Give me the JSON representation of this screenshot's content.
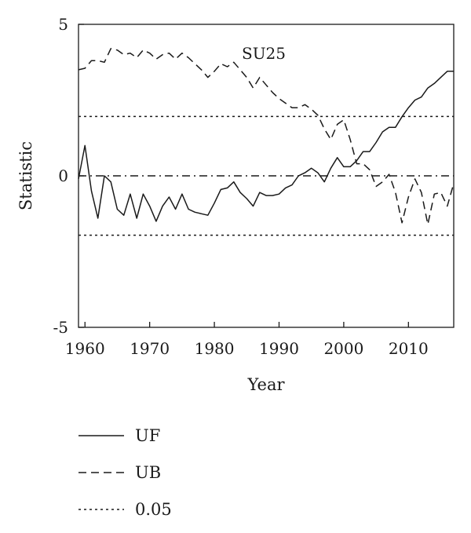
{
  "chart_data": {
    "type": "line",
    "title": "",
    "xlabel": "Year",
    "ylabel": "Statistic",
    "annotation": "SU25",
    "xlim": [
      1959,
      2017
    ],
    "ylim": [
      -5,
      5
    ],
    "x_ticks": [
      1960,
      1970,
      1980,
      1990,
      2000,
      2010
    ],
    "y_ticks": [
      {
        "value": 5,
        "label": "5"
      },
      {
        "value": 0,
        "label": "0"
      },
      {
        "value": -5,
        "label": "-5"
      }
    ],
    "grid": false,
    "legend": {
      "position": "below",
      "entries": [
        {
          "label": "UF",
          "style": "solid"
        },
        {
          "label": "UB",
          "style": "dashed"
        },
        {
          "label": "0.05",
          "style": "dotted"
        }
      ]
    },
    "series": [
      {
        "name": "UF",
        "style": "solid",
        "x": [
          1959,
          1960,
          1961,
          1962,
          1963,
          1964,
          1965,
          1966,
          1967,
          1968,
          1969,
          1970,
          1971,
          1972,
          1973,
          1974,
          1975,
          1976,
          1977,
          1978,
          1979,
          1980,
          1981,
          1982,
          1983,
          1984,
          1985,
          1986,
          1987,
          1988,
          1989,
          1990,
          1991,
          1992,
          1993,
          1994,
          1995,
          1996,
          1997,
          1998,
          1999,
          2000,
          2001,
          2002,
          2003,
          2004,
          2005,
          2006,
          2007,
          2008,
          2009,
          2010,
          2011,
          2012,
          2013,
          2014,
          2015,
          2016,
          2017
        ],
        "y": [
          -0.1,
          1.0,
          -0.5,
          -1.4,
          0.0,
          -0.2,
          -1.1,
          -1.3,
          -0.6,
          -1.4,
          -0.6,
          -1.0,
          -1.5,
          -1.0,
          -0.7,
          -1.1,
          -0.6,
          -1.1,
          -1.2,
          -1.25,
          -1.3,
          -0.9,
          -0.45,
          -0.4,
          -0.2,
          -0.55,
          -0.75,
          -1.0,
          -0.55,
          -0.65,
          -0.65,
          -0.6,
          -0.4,
          -0.3,
          0.0,
          0.1,
          0.25,
          0.1,
          -0.2,
          0.25,
          0.6,
          0.3,
          0.3,
          0.5,
          0.8,
          0.8,
          1.1,
          1.45,
          1.6,
          1.6,
          1.95,
          2.25,
          2.5,
          2.6,
          2.9,
          3.05,
          3.25,
          3.45,
          3.45
        ]
      },
      {
        "name": "UB",
        "style": "dashed",
        "x": [
          1959,
          1960,
          1961,
          1962,
          1963,
          1964,
          1965,
          1966,
          1967,
          1968,
          1969,
          1970,
          1971,
          1972,
          1973,
          1974,
          1975,
          1976,
          1977,
          1978,
          1979,
          1980,
          1981,
          1982,
          1983,
          1984,
          1985,
          1986,
          1987,
          1988,
          1989,
          1990,
          1991,
          1992,
          1993,
          1994,
          1995,
          1996,
          1997,
          1998,
          1999,
          2000,
          2001,
          2002,
          2003,
          2004,
          2005,
          2006,
          2007,
          2008,
          2009,
          2010,
          2011,
          2012,
          2013,
          2014,
          2015,
          2016,
          2017
        ],
        "y": [
          3.5,
          3.55,
          3.8,
          3.8,
          3.75,
          4.2,
          4.15,
          4.0,
          4.05,
          3.9,
          4.15,
          4.05,
          3.85,
          4.0,
          4.05,
          3.85,
          4.05,
          3.9,
          3.7,
          3.5,
          3.25,
          3.45,
          3.7,
          3.6,
          3.75,
          3.5,
          3.25,
          2.9,
          3.25,
          3.0,
          2.75,
          2.55,
          2.4,
          2.25,
          2.25,
          2.35,
          2.2,
          2.0,
          1.55,
          1.2,
          1.7,
          1.85,
          1.2,
          0.4,
          0.4,
          0.2,
          -0.35,
          -0.2,
          0.05,
          -0.55,
          -1.55,
          -0.7,
          -0.1,
          -0.55,
          -1.6,
          -0.6,
          -0.55,
          -1.0,
          -0.25
        ]
      },
      {
        "name": "0.05",
        "style": "dotted",
        "levels": [
          1.96,
          -1.96
        ]
      },
      {
        "name": "",
        "style": "dashdot",
        "levels": [
          0
        ]
      }
    ]
  }
}
